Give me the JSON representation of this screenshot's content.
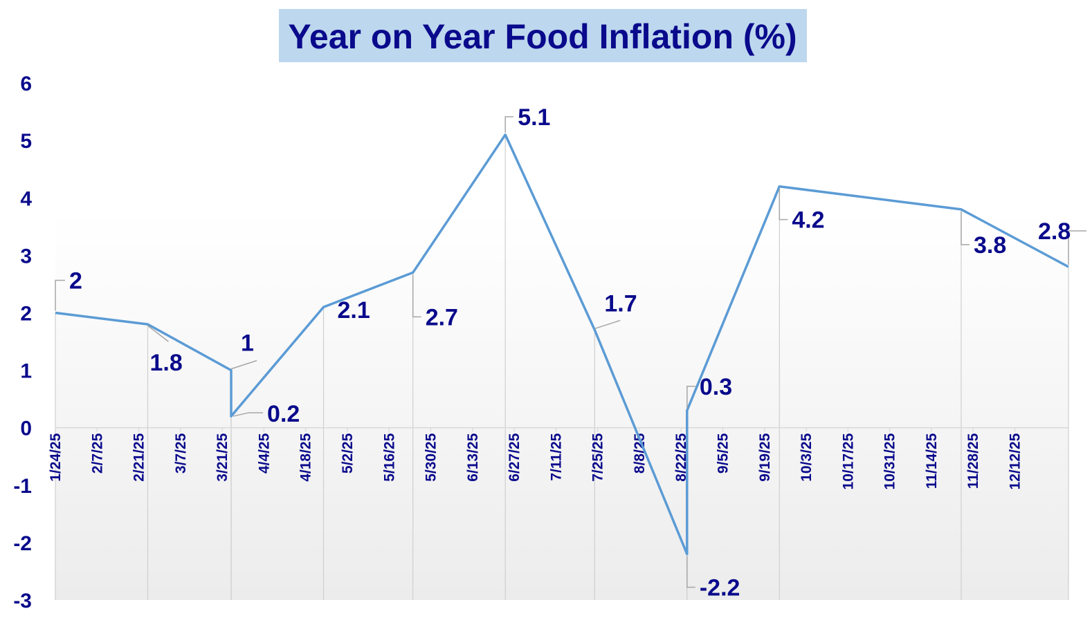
{
  "chart_data": {
    "type": "line",
    "title": "Year on Year Food Inflation (%)",
    "xlabel": "",
    "ylabel": "",
    "ylim": [
      -3,
      6
    ],
    "yticks": [
      6,
      5,
      4,
      3,
      2,
      1,
      0,
      -1,
      -2,
      -3
    ],
    "x_tick_labels": [
      "1/24/25",
      "2/7/25",
      "2/21/25",
      "3/7/25",
      "3/21/25",
      "4/4/25",
      "4/18/25",
      "5/2/25",
      "5/16/25",
      "5/30/25",
      "6/13/25",
      "6/27/25",
      "7/11/25",
      "7/25/25",
      "8/8/25",
      "8/22/25",
      "9/5/25",
      "9/19/25",
      "10/3/25",
      "10/17/25",
      "10/31/25",
      "11/14/25",
      "11/28/25",
      "12/12/25"
    ],
    "xlim": [
      "2025-01-24",
      "2025-12-30"
    ],
    "legend": "none",
    "grid": false,
    "colors": {
      "line": "#5b9bd5",
      "text": "#0a0a8c",
      "title_bg": "#bdd7ee"
    },
    "points": [
      {
        "date": "2025-01-24",
        "value": 2,
        "label": "2"
      },
      {
        "date": "2025-02-24",
        "value": 1.8,
        "label": "1.8"
      },
      {
        "date": "2025-03-24",
        "value": 1,
        "label": "1"
      },
      {
        "date": "2025-03-24",
        "value": 0.2,
        "label": "0.2"
      },
      {
        "date": "2025-04-24",
        "value": 2.1,
        "label": "2.1"
      },
      {
        "date": "2025-05-24",
        "value": 2.7,
        "label": "2.7"
      },
      {
        "date": "2025-06-24",
        "value": 5.1,
        "label": "5.1"
      },
      {
        "date": "2025-07-24",
        "value": 1.7,
        "label": "1.7"
      },
      {
        "date": "2025-08-24",
        "value": -2.2,
        "label": "-2.2"
      },
      {
        "date": "2025-08-24",
        "value": 0.3,
        "label": "0.3"
      },
      {
        "date": "2025-09-24",
        "value": 4.2,
        "label": "4.2"
      },
      {
        "date": "2025-11-24",
        "value": 3.8,
        "label": "3.8"
      },
      {
        "date": "2025-12-30",
        "value": 2.8,
        "label": "2.8"
      }
    ]
  }
}
